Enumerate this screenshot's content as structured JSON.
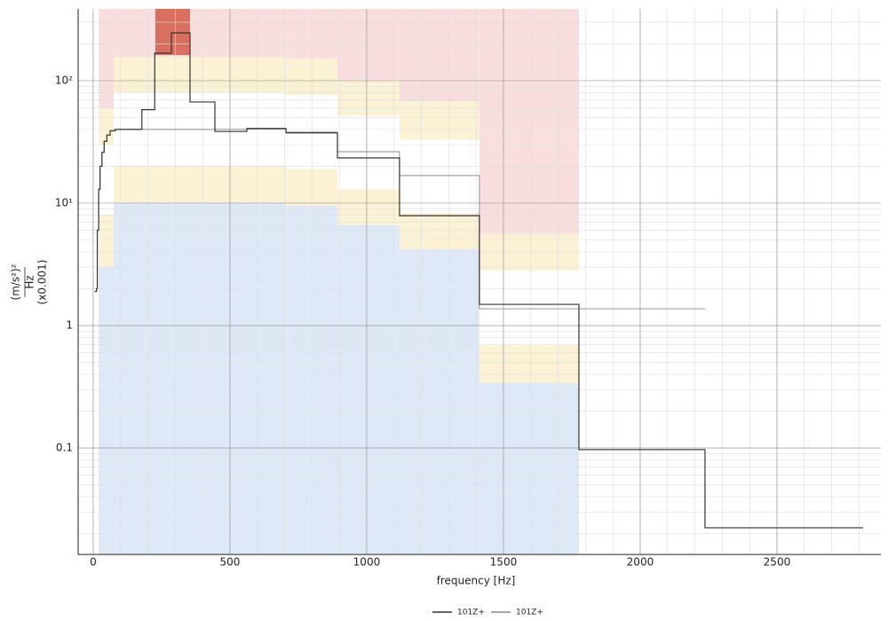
{
  "chart_data": {
    "type": "step",
    "x_label": "frequency [Hz]",
    "y_label": [
      "(m/s²)²",
      "Hz",
      "(x0.001)"
    ],
    "xlim": [
      -55,
      2880
    ],
    "ylim": [
      0.0135,
      386
    ],
    "log_y": true,
    "grid": true,
    "minor_grid": true,
    "xticks": [
      0,
      500,
      1000,
      1500,
      2000,
      2500
    ],
    "yticks": [
      {
        "value": 100,
        "label": "10²"
      },
      {
        "value": 10,
        "label": "10¹"
      },
      1,
      0.1
    ],
    "band_colors": [
      "#dfe8f7",
      "#fbf2d5",
      "#ffffff",
      "#fbf2d5",
      "#f8dede"
    ],
    "bands": [
      {
        "x": [
          20,
          75
        ],
        "levels": [
          3,
          8,
          30,
          60
        ]
      },
      {
        "x": [
          75,
          705
        ],
        "levels": [
          10,
          20,
          80.5,
          157
        ]
      },
      {
        "x": [
          705,
          893
        ],
        "levels": [
          9.5,
          19,
          76.5,
          152
        ]
      },
      {
        "x": [
          893,
          1120
        ],
        "levels": [
          6.6,
          13,
          52,
          101
        ]
      },
      {
        "x": [
          1120,
          1412
        ],
        "levels": [
          4.2,
          8.3,
          33,
          68
        ]
      },
      {
        "x": [
          1412,
          1776
        ],
        "levels": [
          0.34,
          0.69,
          2.8,
          5.6
        ]
      }
    ],
    "alarm": {
      "x": [
        227,
        354
      ],
      "from": 162,
      "color": "#d9705f"
    },
    "x": [
      5,
      12,
      15,
      20,
      25,
      32,
      40,
      50,
      62,
      80,
      178,
      225,
      286,
      354,
      445,
      562,
      705,
      893,
      1120,
      1412,
      1776,
      2237,
      2815
    ],
    "series": [
      {
        "name": "101Z+",
        "color": "#333333",
        "width": 1.2,
        "values": [
          1.9,
          2.0,
          6,
          13,
          20,
          26,
          32,
          36,
          39,
          40,
          58,
          168,
          246,
          67,
          38.5,
          40.5,
          37.5,
          23.4,
          7.9,
          1.49,
          0.097,
          0.0223,
          0.0223
        ]
      },
      {
        "name": "101Z+",
        "color": "#8a8a8a",
        "width": 0.9,
        "values": [
          1.9,
          2.0,
          6,
          13,
          20,
          26,
          32,
          36,
          39,
          40,
          40,
          40,
          40,
          40,
          40,
          41,
          38,
          26.3,
          16.8,
          1.37,
          1.37,
          null,
          null
        ]
      }
    ]
  }
}
